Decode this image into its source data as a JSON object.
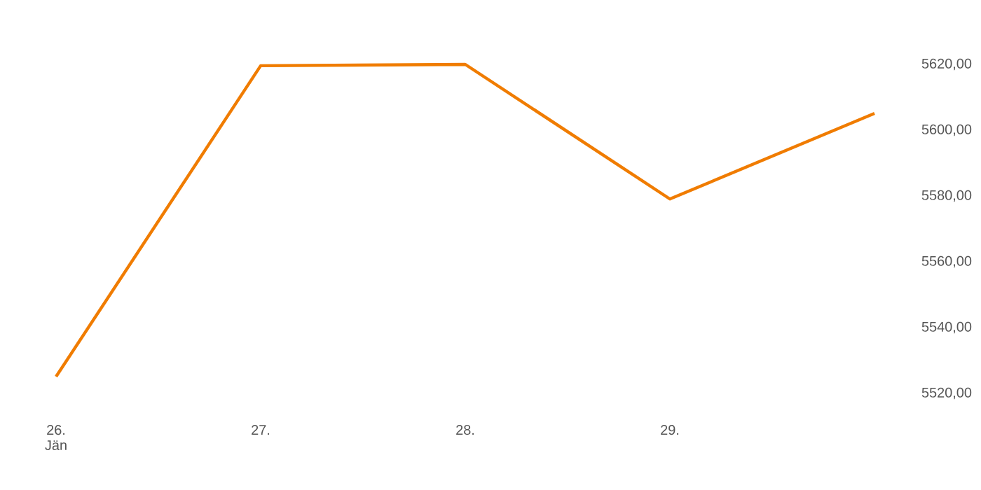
{
  "chart_data": {
    "type": "line",
    "categories": [
      "26. Jän",
      "27.",
      "28.",
      "29.",
      null
    ],
    "series": [
      {
        "color": "#f07c00",
        "values": [
          5525.1,
          5619.6,
          5620,
          5579.1,
          5605.1
        ]
      }
    ],
    "ylim": [
      5520,
      5620
    ],
    "yticks": [
      {
        "value": 5520,
        "label": "5520,00"
      },
      {
        "value": 5540,
        "label": "5540,00"
      },
      {
        "value": 5560,
        "label": "5560,00"
      },
      {
        "value": 5580,
        "label": "5580,00"
      },
      {
        "value": 5600,
        "label": "5600,00"
      },
      {
        "value": 5620,
        "label": "5620,00"
      }
    ]
  }
}
